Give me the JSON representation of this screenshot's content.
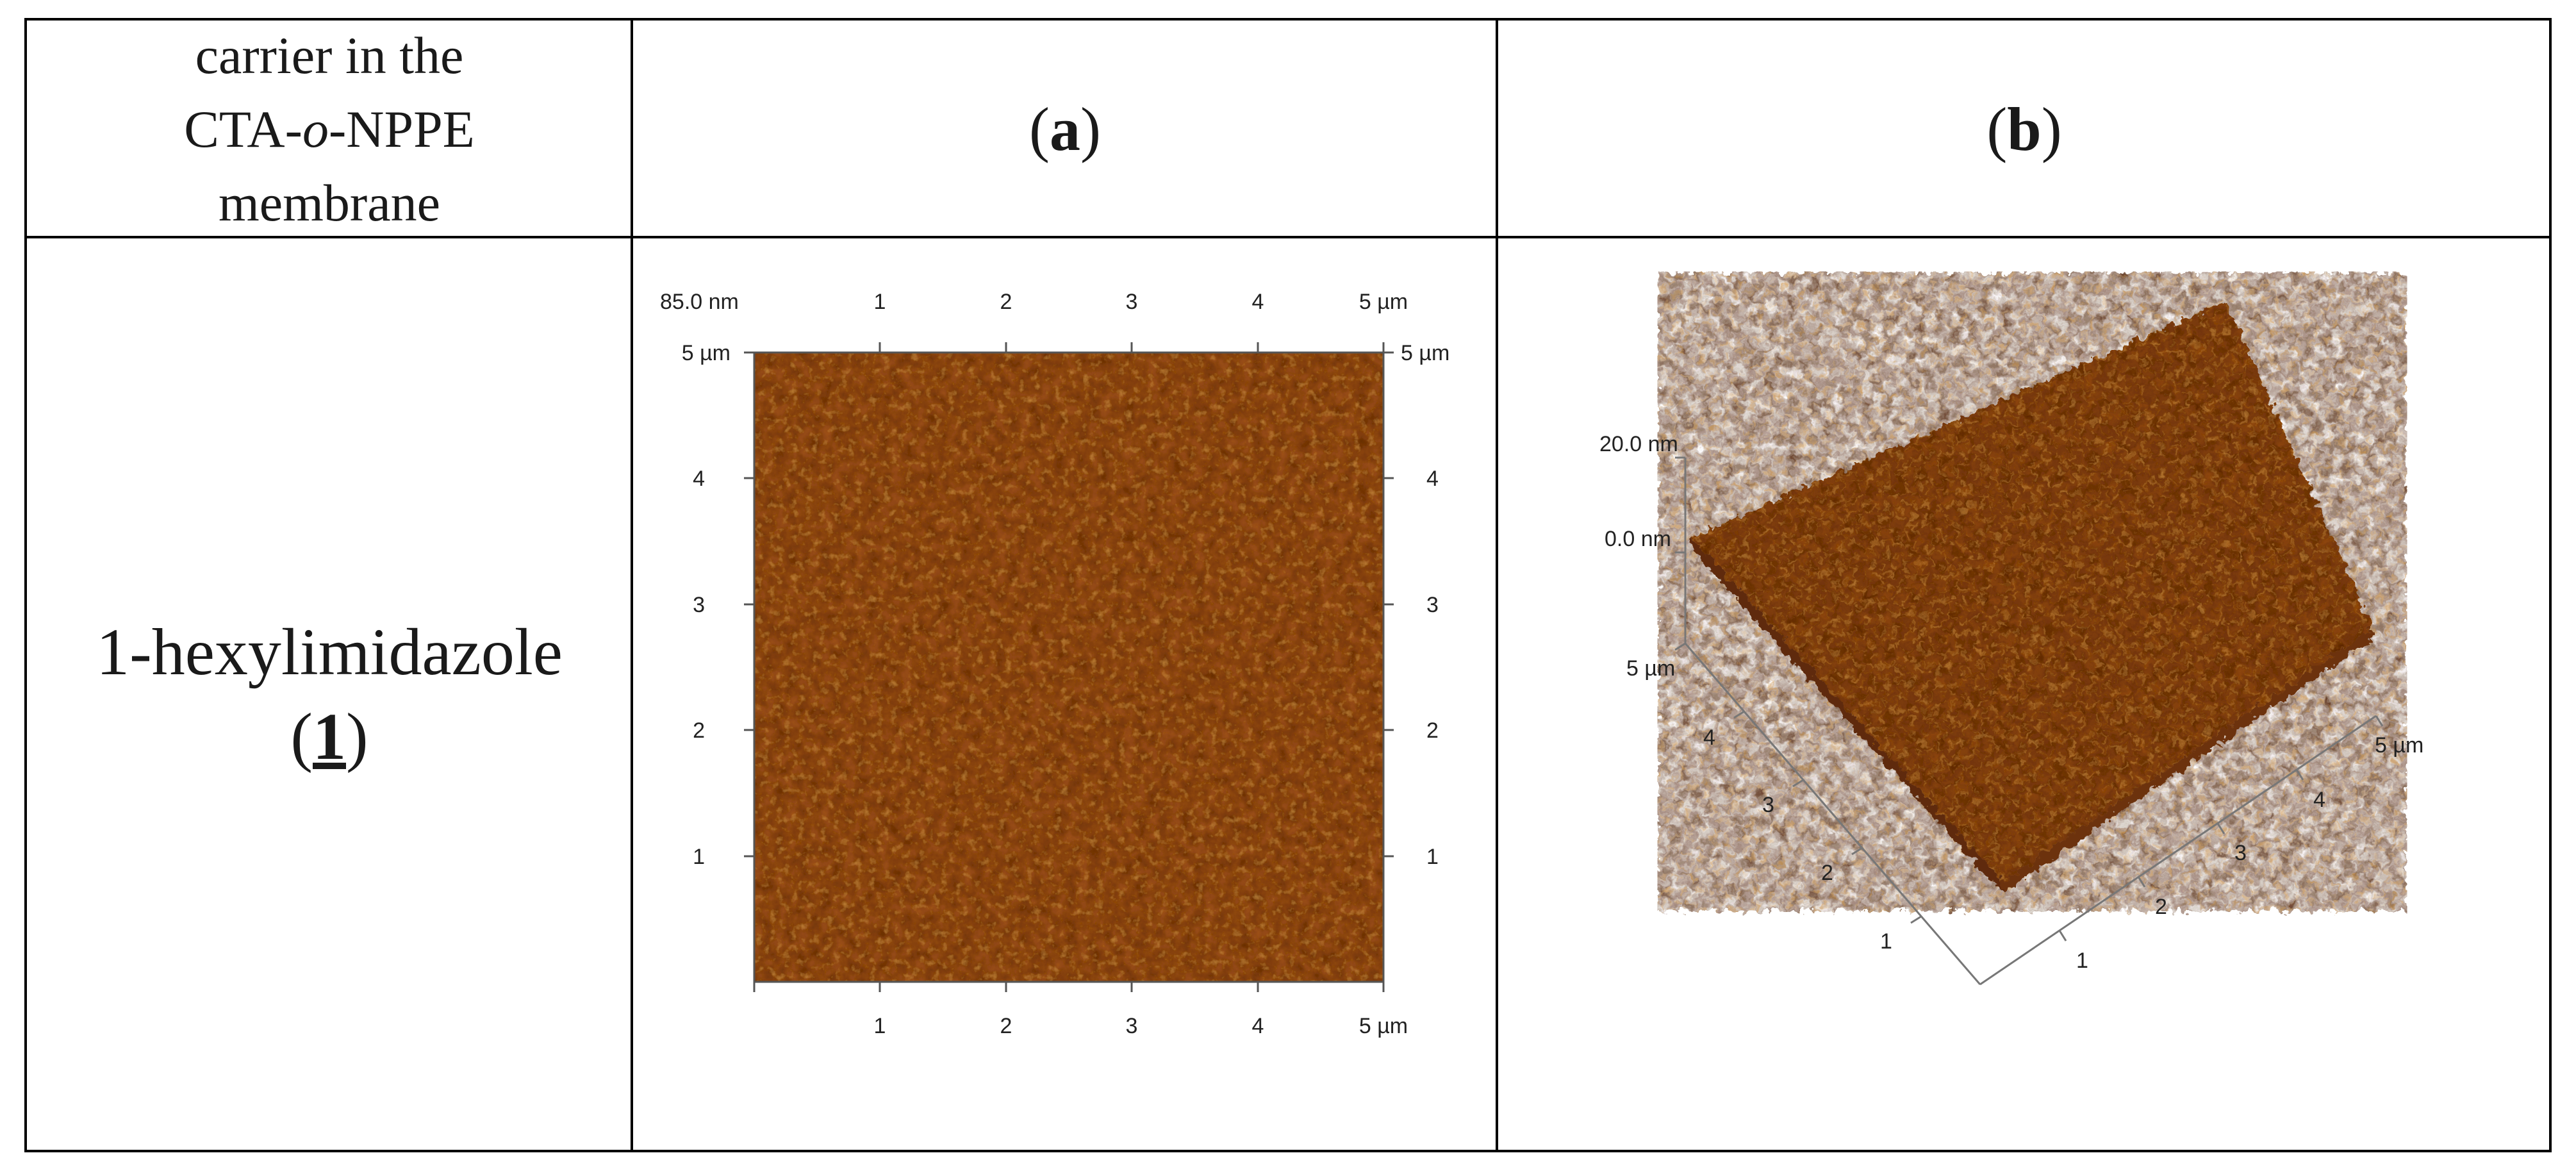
{
  "header": {
    "col1_lines": [
      "carrier in the",
      "CTA-",
      "o",
      "-NPPE",
      "membrane"
    ],
    "col2_label": "a",
    "col3_label": "b"
  },
  "row1": {
    "carrier_name": "1-hexylimidazole",
    "carrier_number": "1"
  },
  "panel_a": {
    "type": "AFM 2D height image",
    "scale_label": "85.0 nm",
    "top_axis_ticks": [
      "1",
      "2",
      "3",
      "4",
      "5 µm"
    ],
    "bottom_axis_ticks": [
      "1",
      "2",
      "3",
      "4",
      "5 µm"
    ],
    "left_axis_ticks": [
      "5 µm",
      "4",
      "3",
      "2",
      "1"
    ],
    "right_axis_ticks": [
      "5 µm",
      "4",
      "3",
      "2",
      "1"
    ],
    "surface_color": "#9a4d14"
  },
  "panel_b": {
    "type": "AFM 3D height image",
    "z_labels": [
      "20.0 nm",
      "0.0 nm"
    ],
    "left_axis_ticks": [
      "5 µm",
      "4",
      "3",
      "2",
      "1"
    ],
    "right_axis_ticks": [
      "1",
      "2",
      "3",
      "4",
      "5 µm"
    ],
    "surface_color": "#8e4612"
  }
}
